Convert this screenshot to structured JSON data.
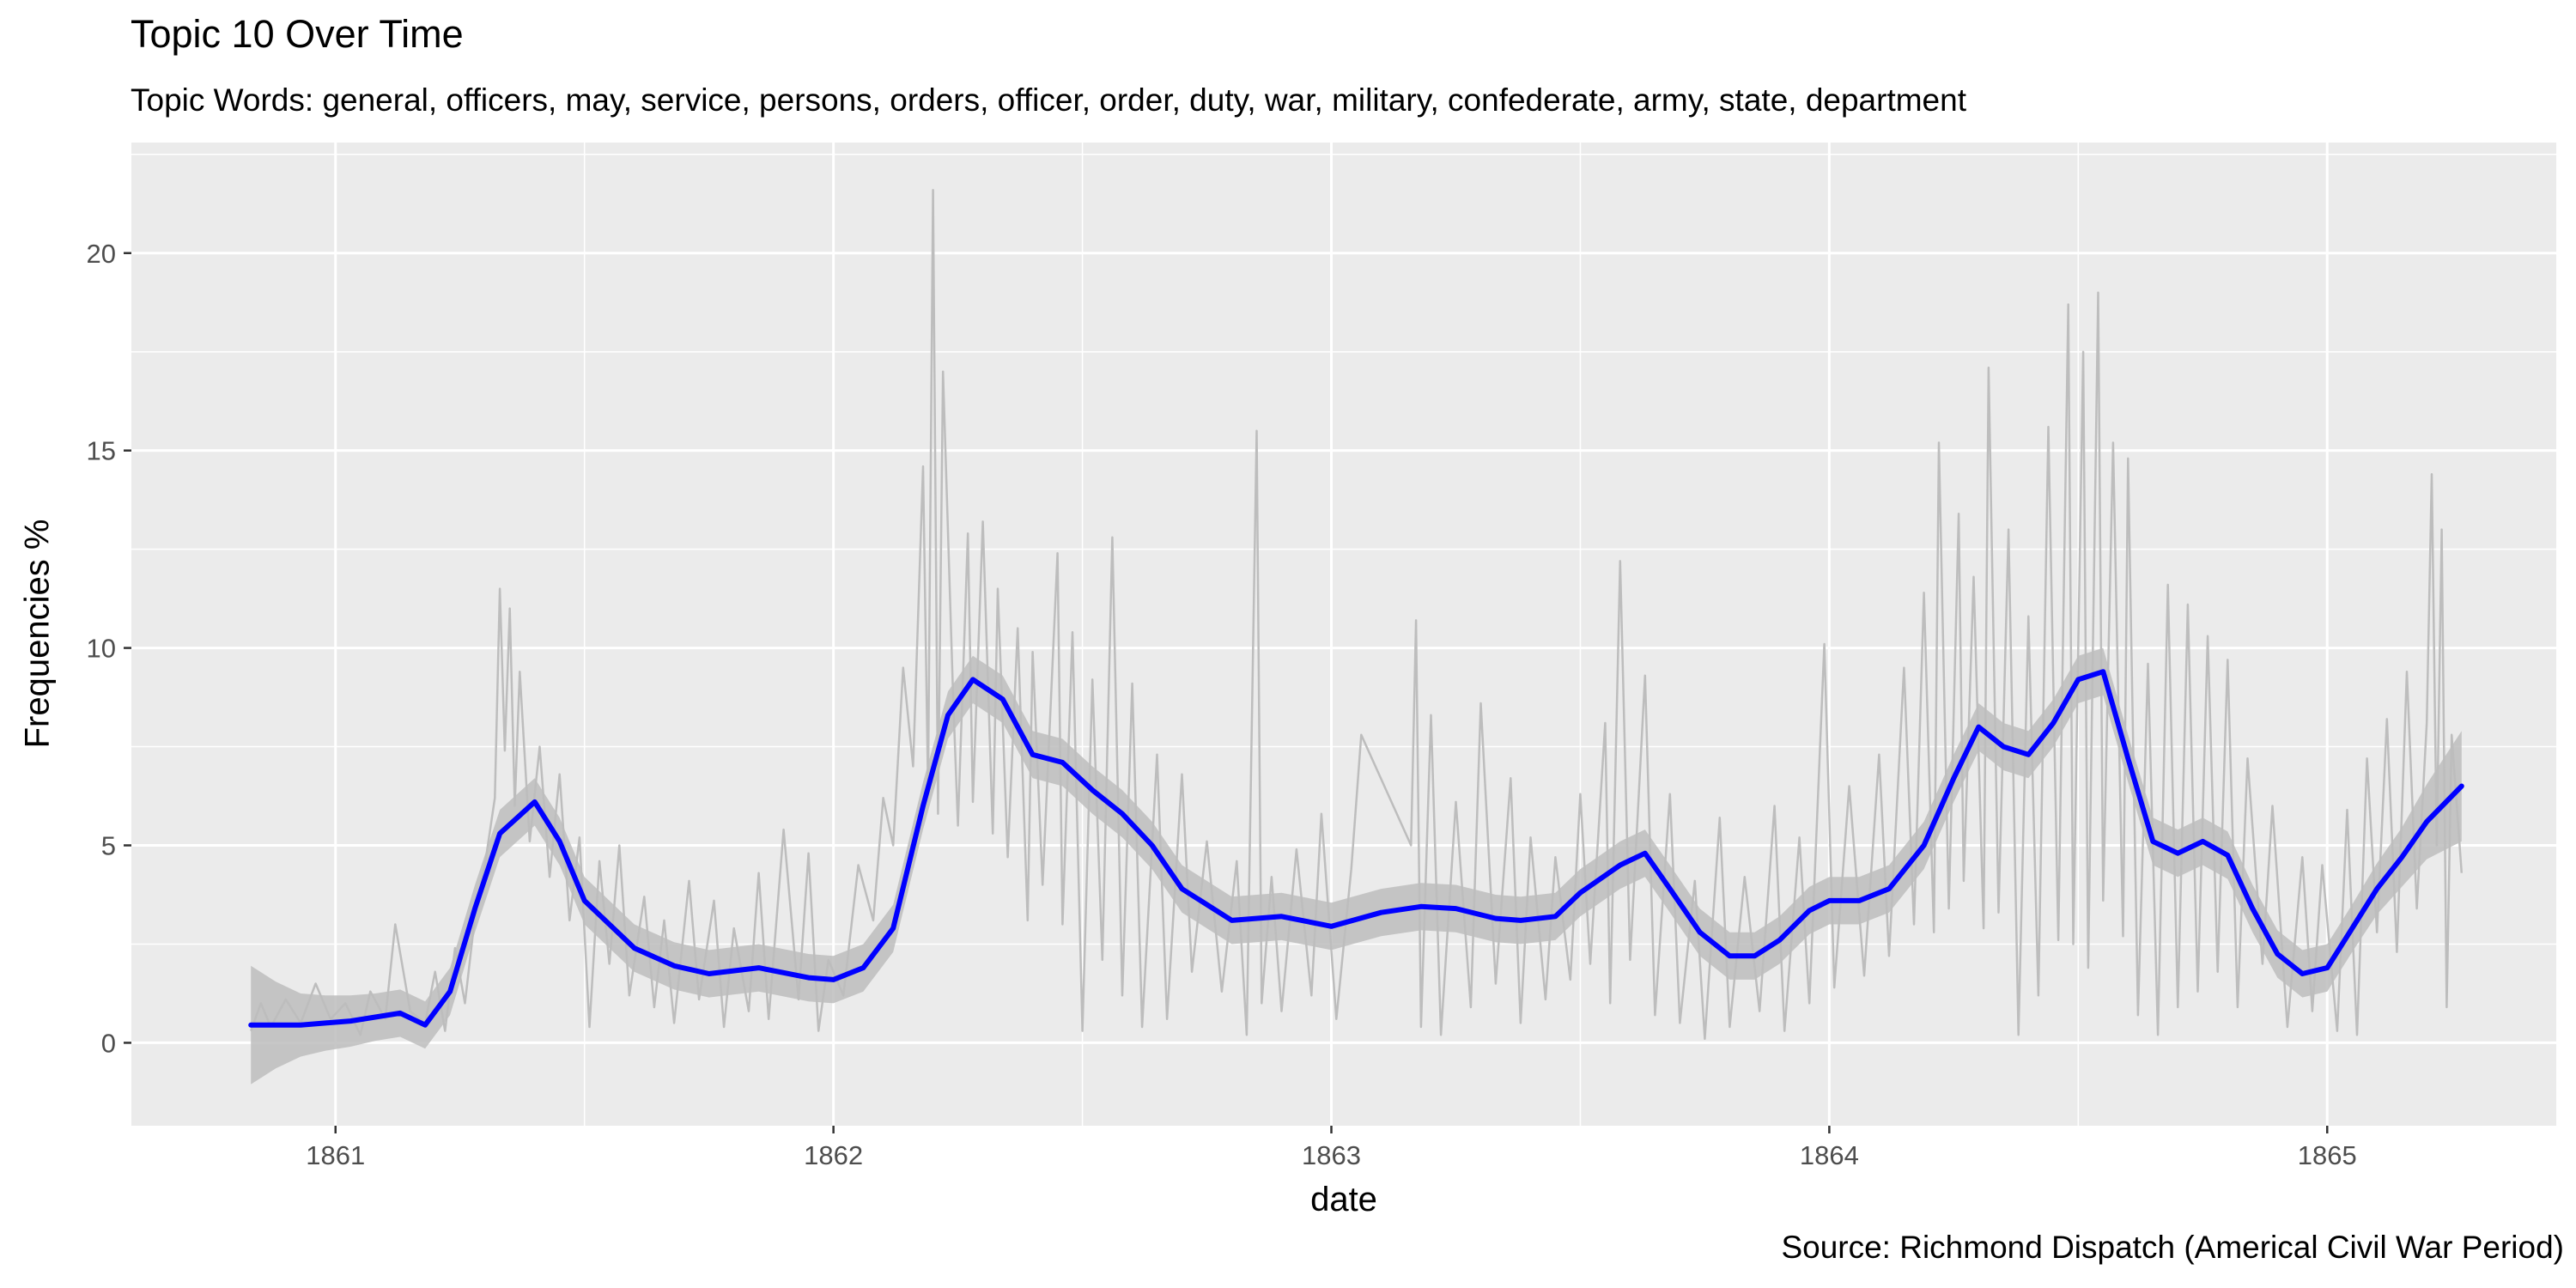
{
  "chart_data": {
    "type": "line",
    "title": "Topic 10 Over Time",
    "subtitle": "Topic Words: general, officers, may, service, persons, orders, officer, order, duty, war, military, confederate, army, state, department",
    "caption": "Source: Richmond Dispatch (Americal Civil War Period)",
    "xlabel": "date",
    "ylabel": "Frequencies %",
    "xlim": [
      1860.59,
      1865.46
    ],
    "ylim": [
      -2.1,
      22.8
    ],
    "x_ticks": [
      1861,
      1862,
      1863,
      1864,
      1865
    ],
    "x_tick_labels": [
      "1861",
      "1862",
      "1863",
      "1864",
      "1865"
    ],
    "y_ticks": [
      0,
      5,
      10,
      15,
      20
    ],
    "y_tick_labels": [
      "0",
      "5",
      "10",
      "15",
      "20"
    ],
    "grid": true,
    "background": "#ebebeb",
    "series": [
      {
        "kind": "raw",
        "color": "#bdbdbd",
        "points": [
          [
            1860.83,
            0.3
          ],
          [
            1860.85,
            1.0
          ],
          [
            1860.87,
            0.4
          ],
          [
            1860.9,
            1.1
          ],
          [
            1860.93,
            0.5
          ],
          [
            1860.96,
            1.5
          ],
          [
            1860.99,
            0.6
          ],
          [
            1861.02,
            1.0
          ],
          [
            1861.05,
            0.2
          ],
          [
            1861.07,
            1.3
          ],
          [
            1861.1,
            0.6
          ],
          [
            1861.12,
            3.0
          ],
          [
            1861.15,
            0.8
          ],
          [
            1861.18,
            0.5
          ],
          [
            1861.2,
            1.8
          ],
          [
            1861.22,
            0.3
          ],
          [
            1861.24,
            2.4
          ],
          [
            1861.26,
            1.0
          ],
          [
            1861.28,
            3.2
          ],
          [
            1861.3,
            4.5
          ],
          [
            1861.32,
            6.2
          ],
          [
            1861.33,
            11.5
          ],
          [
            1861.34,
            7.4
          ],
          [
            1861.35,
            11.0
          ],
          [
            1861.36,
            6.0
          ],
          [
            1861.37,
            9.4
          ],
          [
            1861.39,
            5.1
          ],
          [
            1861.41,
            7.5
          ],
          [
            1861.43,
            4.2
          ],
          [
            1861.45,
            6.8
          ],
          [
            1861.47,
            3.1
          ],
          [
            1861.49,
            5.2
          ],
          [
            1861.51,
            0.4
          ],
          [
            1861.53,
            4.6
          ],
          [
            1861.55,
            2.0
          ],
          [
            1861.57,
            5.0
          ],
          [
            1861.59,
            1.2
          ],
          [
            1861.62,
            3.7
          ],
          [
            1861.64,
            0.9
          ],
          [
            1861.66,
            3.1
          ],
          [
            1861.68,
            0.5
          ],
          [
            1861.71,
            4.1
          ],
          [
            1861.73,
            1.1
          ],
          [
            1861.76,
            3.6
          ],
          [
            1861.78,
            0.4
          ],
          [
            1861.8,
            2.9
          ],
          [
            1861.83,
            0.8
          ],
          [
            1861.85,
            4.3
          ],
          [
            1861.87,
            0.6
          ],
          [
            1861.9,
            5.4
          ],
          [
            1861.93,
            1.1
          ],
          [
            1861.95,
            4.8
          ],
          [
            1861.97,
            0.3
          ],
          [
            1861.99,
            2.1
          ],
          [
            1862.02,
            1.2
          ],
          [
            1862.05,
            4.5
          ],
          [
            1862.08,
            3.1
          ],
          [
            1862.1,
            6.2
          ],
          [
            1862.12,
            5.0
          ],
          [
            1862.14,
            9.5
          ],
          [
            1862.16,
            7.0
          ],
          [
            1862.18,
            14.6
          ],
          [
            1862.19,
            6.4
          ],
          [
            1862.2,
            21.6
          ],
          [
            1862.21,
            5.8
          ],
          [
            1862.22,
            17.0
          ],
          [
            1862.24,
            8.9
          ],
          [
            1862.25,
            5.5
          ],
          [
            1862.27,
            12.9
          ],
          [
            1862.28,
            6.1
          ],
          [
            1862.3,
            13.2
          ],
          [
            1862.32,
            5.3
          ],
          [
            1862.33,
            11.5
          ],
          [
            1862.35,
            4.7
          ],
          [
            1862.37,
            10.5
          ],
          [
            1862.39,
            3.1
          ],
          [
            1862.4,
            9.9
          ],
          [
            1862.42,
            4.0
          ],
          [
            1862.45,
            12.4
          ],
          [
            1862.46,
            3.0
          ],
          [
            1862.48,
            10.4
          ],
          [
            1862.5,
            0.3
          ],
          [
            1862.52,
            9.2
          ],
          [
            1862.54,
            2.1
          ],
          [
            1862.56,
            12.8
          ],
          [
            1862.58,
            1.2
          ],
          [
            1862.6,
            9.1
          ],
          [
            1862.62,
            0.4
          ],
          [
            1862.65,
            7.3
          ],
          [
            1862.67,
            0.6
          ],
          [
            1862.7,
            6.8
          ],
          [
            1862.72,
            1.8
          ],
          [
            1862.75,
            5.1
          ],
          [
            1862.78,
            1.3
          ],
          [
            1862.81,
            4.6
          ],
          [
            1862.83,
            0.2
          ],
          [
            1862.85,
            15.5
          ],
          [
            1862.86,
            1.0
          ],
          [
            1862.88,
            4.2
          ],
          [
            1862.9,
            0.8
          ],
          [
            1862.93,
            4.9
          ],
          [
            1862.96,
            1.2
          ],
          [
            1862.98,
            5.8
          ],
          [
            1863.01,
            0.6
          ],
          [
            1863.04,
            4.4
          ],
          [
            1863.06,
            7.8
          ],
          [
            1863.16,
            5.0
          ],
          [
            1863.17,
            10.7
          ],
          [
            1863.18,
            0.4
          ],
          [
            1863.2,
            8.3
          ],
          [
            1863.22,
            0.2
          ],
          [
            1863.25,
            6.1
          ],
          [
            1863.28,
            0.9
          ],
          [
            1863.3,
            8.6
          ],
          [
            1863.33,
            1.5
          ],
          [
            1863.36,
            6.7
          ],
          [
            1863.38,
            0.5
          ],
          [
            1863.4,
            5.2
          ],
          [
            1863.43,
            1.1
          ],
          [
            1863.45,
            4.7
          ],
          [
            1863.48,
            1.6
          ],
          [
            1863.5,
            6.3
          ],
          [
            1863.52,
            2.0
          ],
          [
            1863.55,
            8.1
          ],
          [
            1863.56,
            1.0
          ],
          [
            1863.58,
            12.2
          ],
          [
            1863.6,
            2.1
          ],
          [
            1863.63,
            9.3
          ],
          [
            1863.65,
            0.7
          ],
          [
            1863.68,
            6.3
          ],
          [
            1863.7,
            0.5
          ],
          [
            1863.73,
            4.1
          ],
          [
            1863.75,
            0.1
          ],
          [
            1863.78,
            5.7
          ],
          [
            1863.8,
            0.4
          ],
          [
            1863.83,
            4.2
          ],
          [
            1863.86,
            0.8
          ],
          [
            1863.89,
            6.0
          ],
          [
            1863.91,
            0.3
          ],
          [
            1863.94,
            5.2
          ],
          [
            1863.96,
            1.0
          ],
          [
            1863.99,
            10.1
          ],
          [
            1864.01,
            1.4
          ],
          [
            1864.04,
            6.5
          ],
          [
            1864.07,
            1.7
          ],
          [
            1864.1,
            7.3
          ],
          [
            1864.12,
            2.2
          ],
          [
            1864.15,
            9.5
          ],
          [
            1864.17,
            3.0
          ],
          [
            1864.19,
            11.4
          ],
          [
            1864.21,
            2.8
          ],
          [
            1864.22,
            15.2
          ],
          [
            1864.24,
            3.4
          ],
          [
            1864.26,
            13.4
          ],
          [
            1864.27,
            4.1
          ],
          [
            1864.29,
            11.8
          ],
          [
            1864.31,
            2.9
          ],
          [
            1864.32,
            17.1
          ],
          [
            1864.34,
            3.3
          ],
          [
            1864.36,
            13.0
          ],
          [
            1864.38,
            0.2
          ],
          [
            1864.4,
            10.8
          ],
          [
            1864.42,
            1.2
          ],
          [
            1864.44,
            15.6
          ],
          [
            1864.46,
            2.6
          ],
          [
            1864.48,
            18.7
          ],
          [
            1864.49,
            2.5
          ],
          [
            1864.51,
            17.5
          ],
          [
            1864.52,
            1.9
          ],
          [
            1864.54,
            19.0
          ],
          [
            1864.55,
            3.6
          ],
          [
            1864.57,
            15.2
          ],
          [
            1864.59,
            2.7
          ],
          [
            1864.6,
            14.8
          ],
          [
            1864.62,
            0.7
          ],
          [
            1864.64,
            9.6
          ],
          [
            1864.66,
            0.2
          ],
          [
            1864.68,
            11.6
          ],
          [
            1864.7,
            0.9
          ],
          [
            1864.72,
            11.1
          ],
          [
            1864.74,
            1.3
          ],
          [
            1864.76,
            10.3
          ],
          [
            1864.78,
            1.8
          ],
          [
            1864.8,
            9.7
          ],
          [
            1864.82,
            0.9
          ],
          [
            1864.84,
            7.2
          ],
          [
            1864.87,
            2.0
          ],
          [
            1864.89,
            6.0
          ],
          [
            1864.92,
            0.4
          ],
          [
            1864.95,
            4.7
          ],
          [
            1864.97,
            0.8
          ],
          [
            1864.99,
            4.5
          ],
          [
            1865.02,
            0.3
          ],
          [
            1865.04,
            5.9
          ],
          [
            1865.06,
            0.2
          ],
          [
            1865.08,
            7.2
          ],
          [
            1865.1,
            2.8
          ],
          [
            1865.12,
            8.2
          ],
          [
            1865.14,
            2.3
          ],
          [
            1865.16,
            9.4
          ],
          [
            1865.18,
            3.4
          ],
          [
            1865.2,
            8.1
          ],
          [
            1865.21,
            14.4
          ],
          [
            1865.22,
            5.0
          ],
          [
            1865.23,
            13.0
          ],
          [
            1865.24,
            0.9
          ],
          [
            1865.25,
            7.8
          ],
          [
            1865.27,
            4.3
          ]
        ]
      },
      {
        "kind": "smooth",
        "color": "#0000ff",
        "x": [
          1860.83,
          1860.88,
          1860.93,
          1860.98,
          1861.03,
          1861.08,
          1861.13,
          1861.18,
          1861.23,
          1861.28,
          1861.33,
          1861.4,
          1861.45,
          1861.5,
          1861.55,
          1861.6,
          1861.68,
          1861.75,
          1861.85,
          1861.95,
          1862.0,
          1862.06,
          1862.12,
          1862.18,
          1862.23,
          1862.28,
          1862.34,
          1862.4,
          1862.46,
          1862.52,
          1862.58,
          1862.64,
          1862.7,
          1862.8,
          1862.9,
          1863.0,
          1863.1,
          1863.18,
          1863.25,
          1863.33,
          1863.38,
          1863.45,
          1863.5,
          1863.58,
          1863.63,
          1863.68,
          1863.74,
          1863.8,
          1863.85,
          1863.9,
          1863.96,
          1864.0,
          1864.06,
          1864.12,
          1864.19,
          1864.25,
          1864.3,
          1864.35,
          1864.4,
          1864.45,
          1864.5,
          1864.55,
          1864.6,
          1864.65,
          1864.7,
          1864.75,
          1864.8,
          1864.85,
          1864.9,
          1864.95,
          1865.0,
          1865.05,
          1865.1,
          1865.15,
          1865.2,
          1865.27
        ],
        "y": [
          0.45,
          0.45,
          0.45,
          0.5,
          0.55,
          0.65,
          0.75,
          0.45,
          1.3,
          3.4,
          5.3,
          6.1,
          5.1,
          3.6,
          3.0,
          2.4,
          1.95,
          1.75,
          1.9,
          1.65,
          1.6,
          1.9,
          2.9,
          6.0,
          8.3,
          9.2,
          8.7,
          7.3,
          7.1,
          6.4,
          5.8,
          5.0,
          3.9,
          3.1,
          3.2,
          2.95,
          3.3,
          3.45,
          3.4,
          3.15,
          3.1,
          3.2,
          3.8,
          4.5,
          4.8,
          3.9,
          2.8,
          2.2,
          2.2,
          2.6,
          3.35,
          3.6,
          3.6,
          3.9,
          5.0,
          6.7,
          8.0,
          7.5,
          7.3,
          8.1,
          9.2,
          9.4,
          7.2,
          5.1,
          4.8,
          5.1,
          4.75,
          3.4,
          2.25,
          1.75,
          1.9,
          2.9,
          3.9,
          4.7,
          5.6,
          6.5
        ]
      },
      {
        "kind": "confidence_band",
        "color": "#bdbdbd",
        "upper_offset": [
          1.5,
          1.1,
          0.8,
          0.7,
          0.65,
          0.6,
          0.6,
          0.6,
          0.6,
          0.6,
          0.6,
          0.6,
          0.6,
          0.6,
          0.6,
          0.6,
          0.6,
          0.6,
          0.6,
          0.6,
          0.6,
          0.6,
          0.6,
          0.6,
          0.6,
          0.6,
          0.6,
          0.6,
          0.6,
          0.6,
          0.6,
          0.6,
          0.6,
          0.6,
          0.6,
          0.6,
          0.6,
          0.6,
          0.6,
          0.6,
          0.6,
          0.6,
          0.6,
          0.6,
          0.6,
          0.6,
          0.6,
          0.6,
          0.6,
          0.6,
          0.6,
          0.6,
          0.6,
          0.6,
          0.6,
          0.6,
          0.6,
          0.6,
          0.6,
          0.6,
          0.6,
          0.6,
          0.6,
          0.6,
          0.6,
          0.6,
          0.6,
          0.6,
          0.6,
          0.6,
          0.6,
          0.6,
          0.65,
          0.75,
          0.95,
          1.4
        ]
      }
    ]
  }
}
